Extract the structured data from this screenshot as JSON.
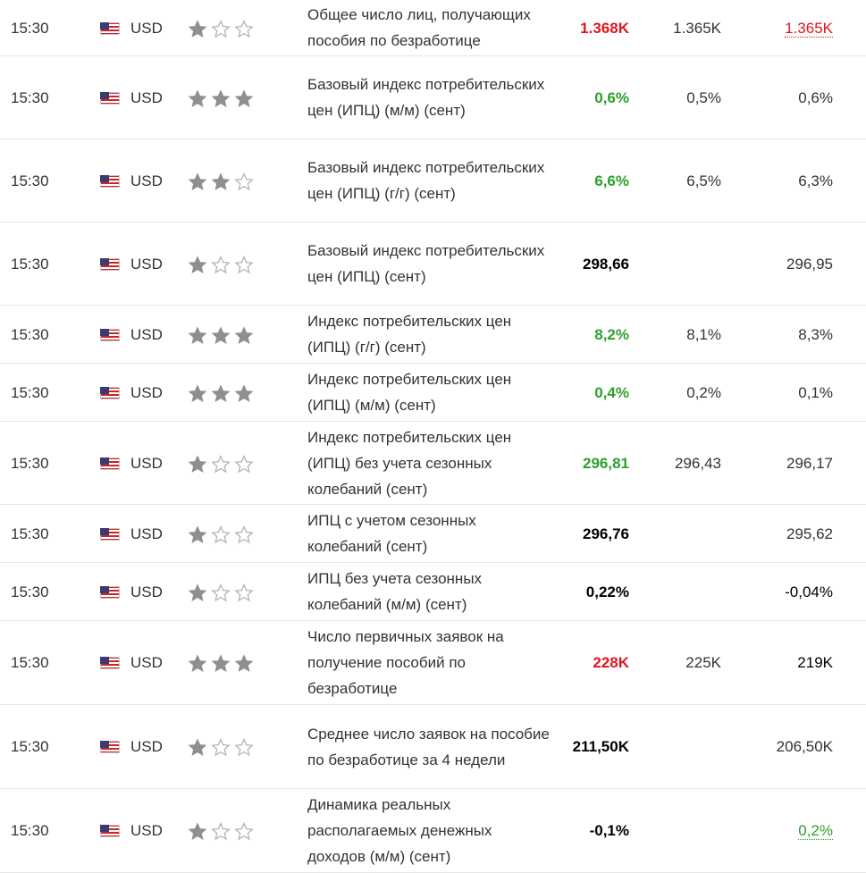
{
  "rows": [
    {
      "time": "15:30",
      "currency": "USD",
      "importance": 1,
      "event": "Общее число лиц, получающих пособия по безработице",
      "actual": "1.368K",
      "forecast": "1.365K",
      "previous": "1.365K",
      "actual_style": "red",
      "previous_style": "underline-red",
      "height": "h1"
    },
    {
      "time": "15:30",
      "currency": "USD",
      "importance": 3,
      "event": "Базовый индекс потребительских цен (ИПЦ) (м/м) (сент)",
      "actual": "0,6%",
      "forecast": "0,5%",
      "previous": "0,6%",
      "actual_style": "green",
      "previous_style": "",
      "height": "h2"
    },
    {
      "time": "15:30",
      "currency": "USD",
      "importance": 2,
      "event": "Базовый индекс потребительских цен (ИПЦ) (г/г) (сент)",
      "actual": "6,6%",
      "forecast": "6,5%",
      "previous": "6,3%",
      "actual_style": "green",
      "previous_style": "",
      "height": "h2"
    },
    {
      "time": "15:30",
      "currency": "USD",
      "importance": 1,
      "event": "Базовый индекс потребительских цен (ИПЦ) (сент)",
      "actual": "298,66",
      "forecast": "",
      "previous": "296,95",
      "actual_style": "",
      "previous_style": "",
      "height": "h2"
    },
    {
      "time": "15:30",
      "currency": "USD",
      "importance": 3,
      "event": "Индекс потребительских цен (ИПЦ) (г/г) (сент)",
      "actual": "8,2%",
      "forecast": "8,1%",
      "previous": "8,3%",
      "actual_style": "green",
      "previous_style": "",
      "height": "h3"
    },
    {
      "time": "15:30",
      "currency": "USD",
      "importance": 3,
      "event": "Индекс потребительских цен (ИПЦ) (м/м) (сент)",
      "actual": "0,4%",
      "forecast": "0,2%",
      "previous": "0,1%",
      "actual_style": "green",
      "previous_style": "",
      "height": "h3"
    },
    {
      "time": "15:30",
      "currency": "USD",
      "importance": 1,
      "event": "Индекс потребительских цен (ИПЦ) без учета сезонных колебаний (сент)",
      "actual": "296,81",
      "forecast": "296,43",
      "previous": "296,17",
      "actual_style": "green",
      "previous_style": "",
      "height": "h2"
    },
    {
      "time": "15:30",
      "currency": "USD",
      "importance": 1,
      "event": "ИПЦ с учетом сезонных колебаний (сент)",
      "actual": "296,76",
      "forecast": "",
      "previous": "295,62",
      "actual_style": "",
      "previous_style": "",
      "height": "h3"
    },
    {
      "time": "15:30",
      "currency": "USD",
      "importance": 1,
      "event": "ИПЦ без учета сезонных колебаний (м/м) (сент)",
      "actual": "0,22%",
      "forecast": "",
      "previous": "-0,04%",
      "actual_style": "",
      "previous_style": "neg",
      "height": "h3"
    },
    {
      "time": "15:30",
      "currency": "USD",
      "importance": 3,
      "event": "Число первичных заявок на получение пособий по безработице",
      "actual": "228K",
      "forecast": "225K",
      "previous": "219K",
      "actual_style": "red",
      "previous_style": "neg",
      "height": "h4"
    },
    {
      "time": "15:30",
      "currency": "USD",
      "importance": 1,
      "event": "Среднее число заявок на пособие по безработице за 4 недели",
      "actual": "211,50K",
      "forecast": "",
      "previous": "206,50K",
      "actual_style": "",
      "previous_style": "",
      "height": "h4"
    },
    {
      "time": "15:30",
      "currency": "USD",
      "importance": 1,
      "event": "Динамика реальных располагаемых денежных доходов (м/м) (сент)",
      "actual": "-0,1%",
      "forecast": "",
      "previous": "0,2%",
      "actual_style": "neg",
      "previous_style": "underline-green",
      "height": "h4"
    }
  ],
  "colors": {
    "positive": "#2e9f2e",
    "negative": "#e0161e",
    "star": "#8f8f8f"
  },
  "icons": {
    "flag": "us-flag-icon",
    "star_full": "star-filled-icon",
    "star_empty": "star-outline-icon"
  }
}
